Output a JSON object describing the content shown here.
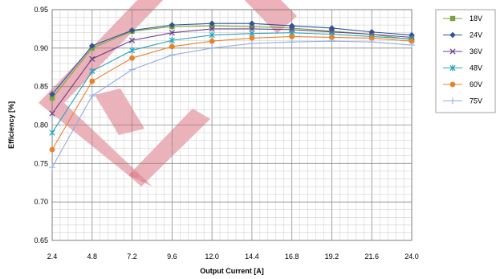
{
  "chart_data": {
    "type": "line",
    "xlabel": "Output Current [A]",
    "ylabel": "Efficiency [%]",
    "xlim": [
      2.4,
      24.0
    ],
    "ylim": [
      0.65,
      0.95
    ],
    "x_ticks": [
      "2.4",
      "4.8",
      "7.2",
      "9.6",
      "12.0",
      "14.4",
      "16.8",
      "19.2",
      "21.6",
      "24.0"
    ],
    "y_ticks": [
      "0.65",
      "0.70",
      "0.75",
      "0.80",
      "0.85",
      "0.90",
      "0.95"
    ],
    "grid": true,
    "legend_position": "right",
    "watermark_color": "#e07080",
    "x": [
      2.4,
      4.8,
      7.2,
      9.6,
      12.0,
      14.4,
      16.8,
      19.2,
      21.6,
      24.0
    ],
    "series": [
      {
        "name": "18V",
        "color": "#77a53f",
        "marker": "square",
        "values": [
          0.835,
          0.9,
          0.922,
          0.928,
          0.929,
          0.928,
          0.926,
          0.922,
          0.918,
          0.911
        ]
      },
      {
        "name": "24V",
        "color": "#2f5597",
        "marker": "diamond",
        "values": [
          0.84,
          0.903,
          0.923,
          0.93,
          0.932,
          0.932,
          0.929,
          0.926,
          0.921,
          0.917
        ]
      },
      {
        "name": "36V",
        "color": "#6a3d8f",
        "marker": "x",
        "values": [
          0.815,
          0.886,
          0.91,
          0.92,
          0.925,
          0.925,
          0.924,
          0.921,
          0.918,
          0.914
        ]
      },
      {
        "name": "48V",
        "color": "#2aa3b8",
        "marker": "star",
        "values": [
          0.79,
          0.87,
          0.897,
          0.91,
          0.917,
          0.919,
          0.92,
          0.918,
          0.915,
          0.912
        ]
      },
      {
        "name": "60V",
        "color": "#e8822a",
        "marker": "circle",
        "values": [
          0.768,
          0.857,
          0.887,
          0.902,
          0.909,
          0.913,
          0.915,
          0.914,
          0.913,
          0.909
        ]
      },
      {
        "name": "75V",
        "color": "#92aee0",
        "marker": "plus",
        "values": [
          0.745,
          0.838,
          0.872,
          0.891,
          0.9,
          0.906,
          0.908,
          0.909,
          0.908,
          0.904
        ]
      }
    ]
  }
}
